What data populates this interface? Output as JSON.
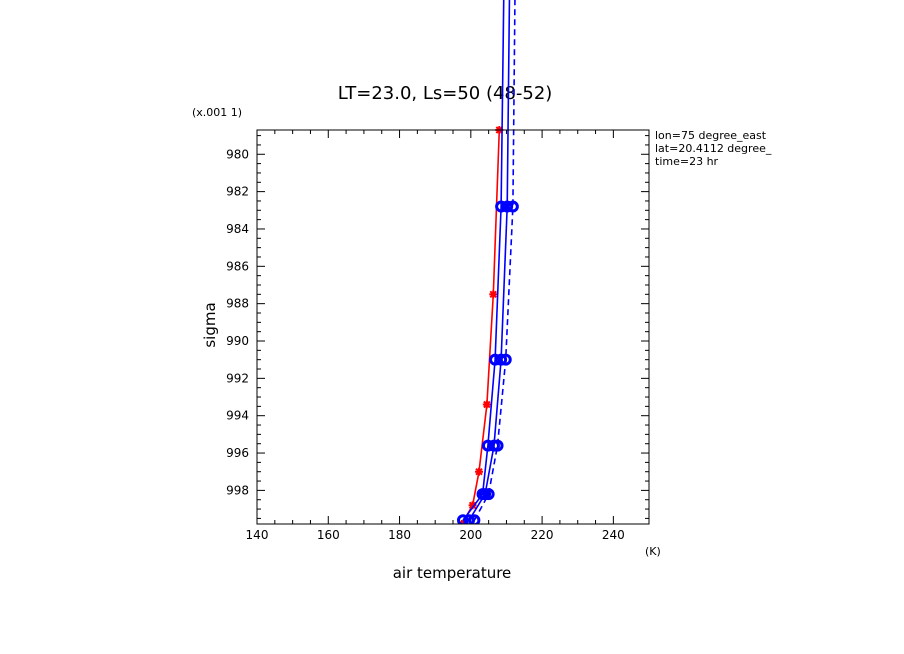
{
  "chart_data": {
    "type": "line",
    "title": "LT=23.0, Ls=50 (48-52)",
    "xlabel": "air temperature",
    "ylabel": "sigma",
    "x_unit": "(K)",
    "y_scale_label": "(x.001 1)",
    "xlim": [
      140,
      250
    ],
    "ylim": [
      999.8,
      978.7
    ],
    "x_ticks": [
      140,
      160,
      180,
      200,
      220,
      240
    ],
    "y_ticks": [
      980,
      982,
      984,
      986,
      988,
      990,
      992,
      994,
      996,
      998
    ],
    "annotations": [
      "lon=75 degree_east",
      "lat=20.4112 degree_",
      "time=23 hr"
    ],
    "colors": {
      "red": "#ff0000",
      "blue": "#0000ff"
    },
    "series": [
      {
        "color": "#ff0000",
        "style": "solid",
        "marker": "star",
        "points": [
          [
            197.5,
            999.8
          ],
          [
            200.5,
            998.8
          ],
          [
            202.3,
            997.0
          ],
          [
            204.5,
            993.4
          ],
          [
            206.3,
            987.5
          ],
          [
            208.0,
            978.7
          ]
        ]
      },
      {
        "color": "#0000ff",
        "style": "solid",
        "marker": "circle",
        "points": [
          [
            197.8,
            999.6
          ],
          [
            203.3,
            998.2
          ],
          [
            204.8,
            995.6
          ],
          [
            206.8,
            991.0
          ],
          [
            208.5,
            982.8
          ],
          [
            210.0,
            960.0
          ]
        ]
      },
      {
        "color": "#0000ff",
        "style": "solid",
        "marker": "circle",
        "points": [
          [
            199.5,
            999.6
          ],
          [
            204.0,
            998.2
          ],
          [
            206.5,
            995.6
          ],
          [
            208.5,
            991.0
          ],
          [
            210.2,
            982.8
          ],
          [
            211.5,
            960.0
          ]
        ]
      },
      {
        "color": "#0000ff",
        "style": "dashed",
        "marker": "circle",
        "points": [
          [
            201.0,
            999.6
          ],
          [
            205.0,
            998.2
          ],
          [
            207.5,
            995.6
          ],
          [
            209.8,
            991.0
          ],
          [
            211.8,
            982.8
          ],
          [
            213.0,
            960.0
          ]
        ]
      }
    ]
  }
}
